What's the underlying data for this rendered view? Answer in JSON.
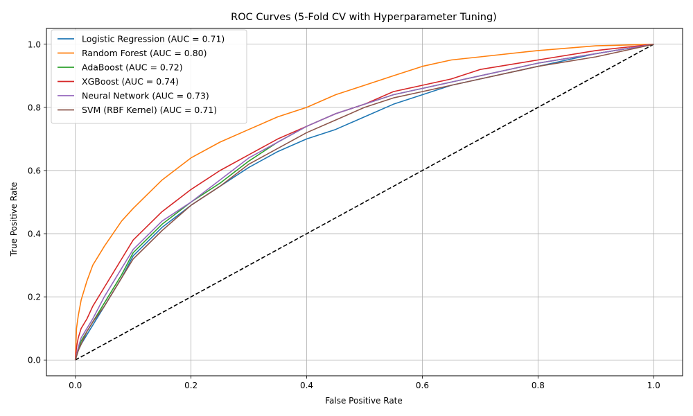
{
  "chart_data": {
    "type": "line",
    "title": "ROC Curves (5-Fold CV with Hyperparameter Tuning)",
    "xlabel": "False Positive Rate",
    "ylabel": "True Positive Rate",
    "xlim": [
      -0.05,
      1.05
    ],
    "ylim": [
      -0.05,
      1.05
    ],
    "xticks": [
      0.0,
      0.2,
      0.4,
      0.6,
      0.8,
      1.0
    ],
    "yticks": [
      0.0,
      0.2,
      0.4,
      0.6,
      0.8,
      1.0
    ],
    "xtick_labels": [
      "0.0",
      "0.2",
      "0.4",
      "0.6",
      "0.8",
      "1.0"
    ],
    "ytick_labels": [
      "0.0",
      "0.2",
      "0.4",
      "0.6",
      "0.8",
      "1.0"
    ],
    "grid": true,
    "legend_position": "top-left",
    "diagonal": {
      "x": [
        0,
        1
      ],
      "y": [
        0,
        1
      ],
      "color": "#000000",
      "style": "dashed"
    },
    "series": [
      {
        "name": "Logistic Regression (AUC = 0.71)",
        "color": "#1f77b4",
        "x": [
          0,
          0.005,
          0.01,
          0.02,
          0.03,
          0.05,
          0.08,
          0.1,
          0.15,
          0.2,
          0.25,
          0.3,
          0.35,
          0.4,
          0.45,
          0.5,
          0.55,
          0.6,
          0.65,
          0.7,
          0.8,
          0.9,
          1.0
        ],
        "y": [
          0,
          0.03,
          0.05,
          0.08,
          0.11,
          0.17,
          0.26,
          0.33,
          0.42,
          0.49,
          0.55,
          0.61,
          0.66,
          0.7,
          0.73,
          0.77,
          0.81,
          0.84,
          0.87,
          0.89,
          0.93,
          0.97,
          1.0
        ]
      },
      {
        "name": "Random Forest (AUC = 0.80)",
        "color": "#ff7f0e",
        "x": [
          0,
          0.002,
          0.005,
          0.01,
          0.02,
          0.03,
          0.05,
          0.08,
          0.1,
          0.15,
          0.2,
          0.25,
          0.3,
          0.35,
          0.4,
          0.45,
          0.5,
          0.55,
          0.6,
          0.65,
          0.7,
          0.8,
          0.9,
          1.0
        ],
        "y": [
          0,
          0.1,
          0.14,
          0.19,
          0.25,
          0.3,
          0.36,
          0.44,
          0.48,
          0.57,
          0.64,
          0.69,
          0.73,
          0.77,
          0.8,
          0.84,
          0.87,
          0.9,
          0.93,
          0.95,
          0.96,
          0.98,
          0.995,
          1.0
        ]
      },
      {
        "name": "AdaBoost (AUC = 0.72)",
        "color": "#2ca02c",
        "x": [
          0,
          0.005,
          0.01,
          0.02,
          0.03,
          0.05,
          0.08,
          0.1,
          0.15,
          0.2,
          0.25,
          0.3,
          0.35,
          0.4,
          0.45,
          0.5,
          0.55,
          0.6,
          0.65,
          0.7,
          0.8,
          0.9,
          1.0
        ],
        "y": [
          0,
          0.03,
          0.06,
          0.09,
          0.12,
          0.18,
          0.27,
          0.34,
          0.43,
          0.5,
          0.56,
          0.63,
          0.69,
          0.74,
          0.78,
          0.81,
          0.84,
          0.86,
          0.88,
          0.9,
          0.94,
          0.97,
          1.0
        ]
      },
      {
        "name": "XGBoost (AUC = 0.74)",
        "color": "#d62728",
        "x": [
          0,
          0.002,
          0.005,
          0.01,
          0.02,
          0.03,
          0.05,
          0.08,
          0.1,
          0.15,
          0.2,
          0.25,
          0.3,
          0.35,
          0.4,
          0.45,
          0.5,
          0.55,
          0.6,
          0.65,
          0.7,
          0.8,
          0.9,
          1.0
        ],
        "y": [
          0,
          0.04,
          0.07,
          0.1,
          0.13,
          0.17,
          0.23,
          0.32,
          0.38,
          0.47,
          0.54,
          0.6,
          0.65,
          0.7,
          0.74,
          0.78,
          0.81,
          0.85,
          0.87,
          0.89,
          0.92,
          0.95,
          0.98,
          1.0
        ]
      },
      {
        "name": "Neural Network (AUC = 0.73)",
        "color": "#9467bd",
        "x": [
          0,
          0.005,
          0.01,
          0.02,
          0.03,
          0.05,
          0.08,
          0.1,
          0.15,
          0.2,
          0.25,
          0.3,
          0.35,
          0.4,
          0.45,
          0.5,
          0.55,
          0.6,
          0.65,
          0.7,
          0.8,
          0.9,
          1.0
        ],
        "y": [
          0,
          0.04,
          0.07,
          0.1,
          0.13,
          0.2,
          0.29,
          0.35,
          0.44,
          0.5,
          0.57,
          0.64,
          0.69,
          0.74,
          0.78,
          0.81,
          0.84,
          0.86,
          0.88,
          0.9,
          0.94,
          0.97,
          1.0
        ]
      },
      {
        "name": "SVM (RBF Kernel) (AUC = 0.71)",
        "color": "#8c564b",
        "x": [
          0,
          0.005,
          0.01,
          0.02,
          0.03,
          0.05,
          0.08,
          0.1,
          0.15,
          0.2,
          0.25,
          0.3,
          0.35,
          0.4,
          0.45,
          0.5,
          0.55,
          0.6,
          0.65,
          0.7,
          0.8,
          0.9,
          1.0
        ],
        "y": [
          0,
          0.03,
          0.05,
          0.09,
          0.12,
          0.17,
          0.26,
          0.32,
          0.41,
          0.49,
          0.55,
          0.62,
          0.67,
          0.72,
          0.76,
          0.8,
          0.83,
          0.85,
          0.87,
          0.89,
          0.93,
          0.96,
          1.0
        ]
      }
    ]
  }
}
